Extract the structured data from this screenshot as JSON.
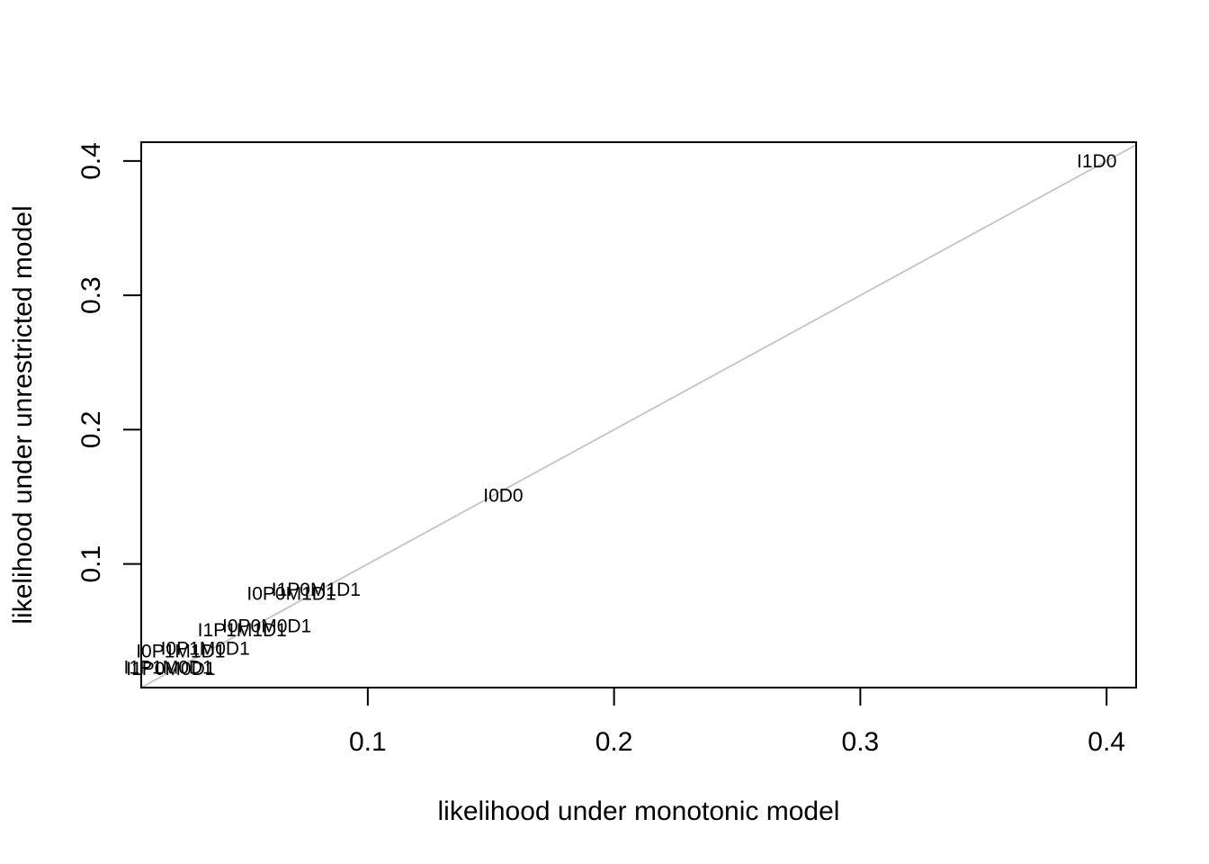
{
  "chart_data": {
    "type": "scatter",
    "title": "",
    "xlabel": "likelihood under monotonic model",
    "ylabel": "likelihood under unrestricted model",
    "xlim": [
      0.008,
      0.412
    ],
    "ylim": [
      0.008,
      0.414
    ],
    "xticks": [
      0.1,
      0.2,
      0.3,
      0.4
    ],
    "yticks": [
      0.1,
      0.2,
      0.3,
      0.4
    ],
    "reference_line": "y = x",
    "reference_line_color": "#c8c8c8",
    "grid": false,
    "points": [
      {
        "label": "I1D0",
        "x": 0.396,
        "y": 0.4
      },
      {
        "label": "I0D0",
        "x": 0.155,
        "y": 0.151
      },
      {
        "label": "I1P0M1D1",
        "x": 0.079,
        "y": 0.081
      },
      {
        "label": "I0P0M1D1",
        "x": 0.069,
        "y": 0.078
      },
      {
        "label": "I0P0M0D1",
        "x": 0.059,
        "y": 0.054
      },
      {
        "label": "I1P1M1D1",
        "x": 0.049,
        "y": 0.051
      },
      {
        "label": "I0P1M0D1",
        "x": 0.034,
        "y": 0.037
      },
      {
        "label": "I0P1M1D1",
        "x": 0.024,
        "y": 0.035
      },
      {
        "label": "I1P0M0D1",
        "x": 0.02,
        "y": 0.022
      },
      {
        "label": "I1P1M0D1",
        "x": 0.019,
        "y": 0.023
      }
    ]
  }
}
